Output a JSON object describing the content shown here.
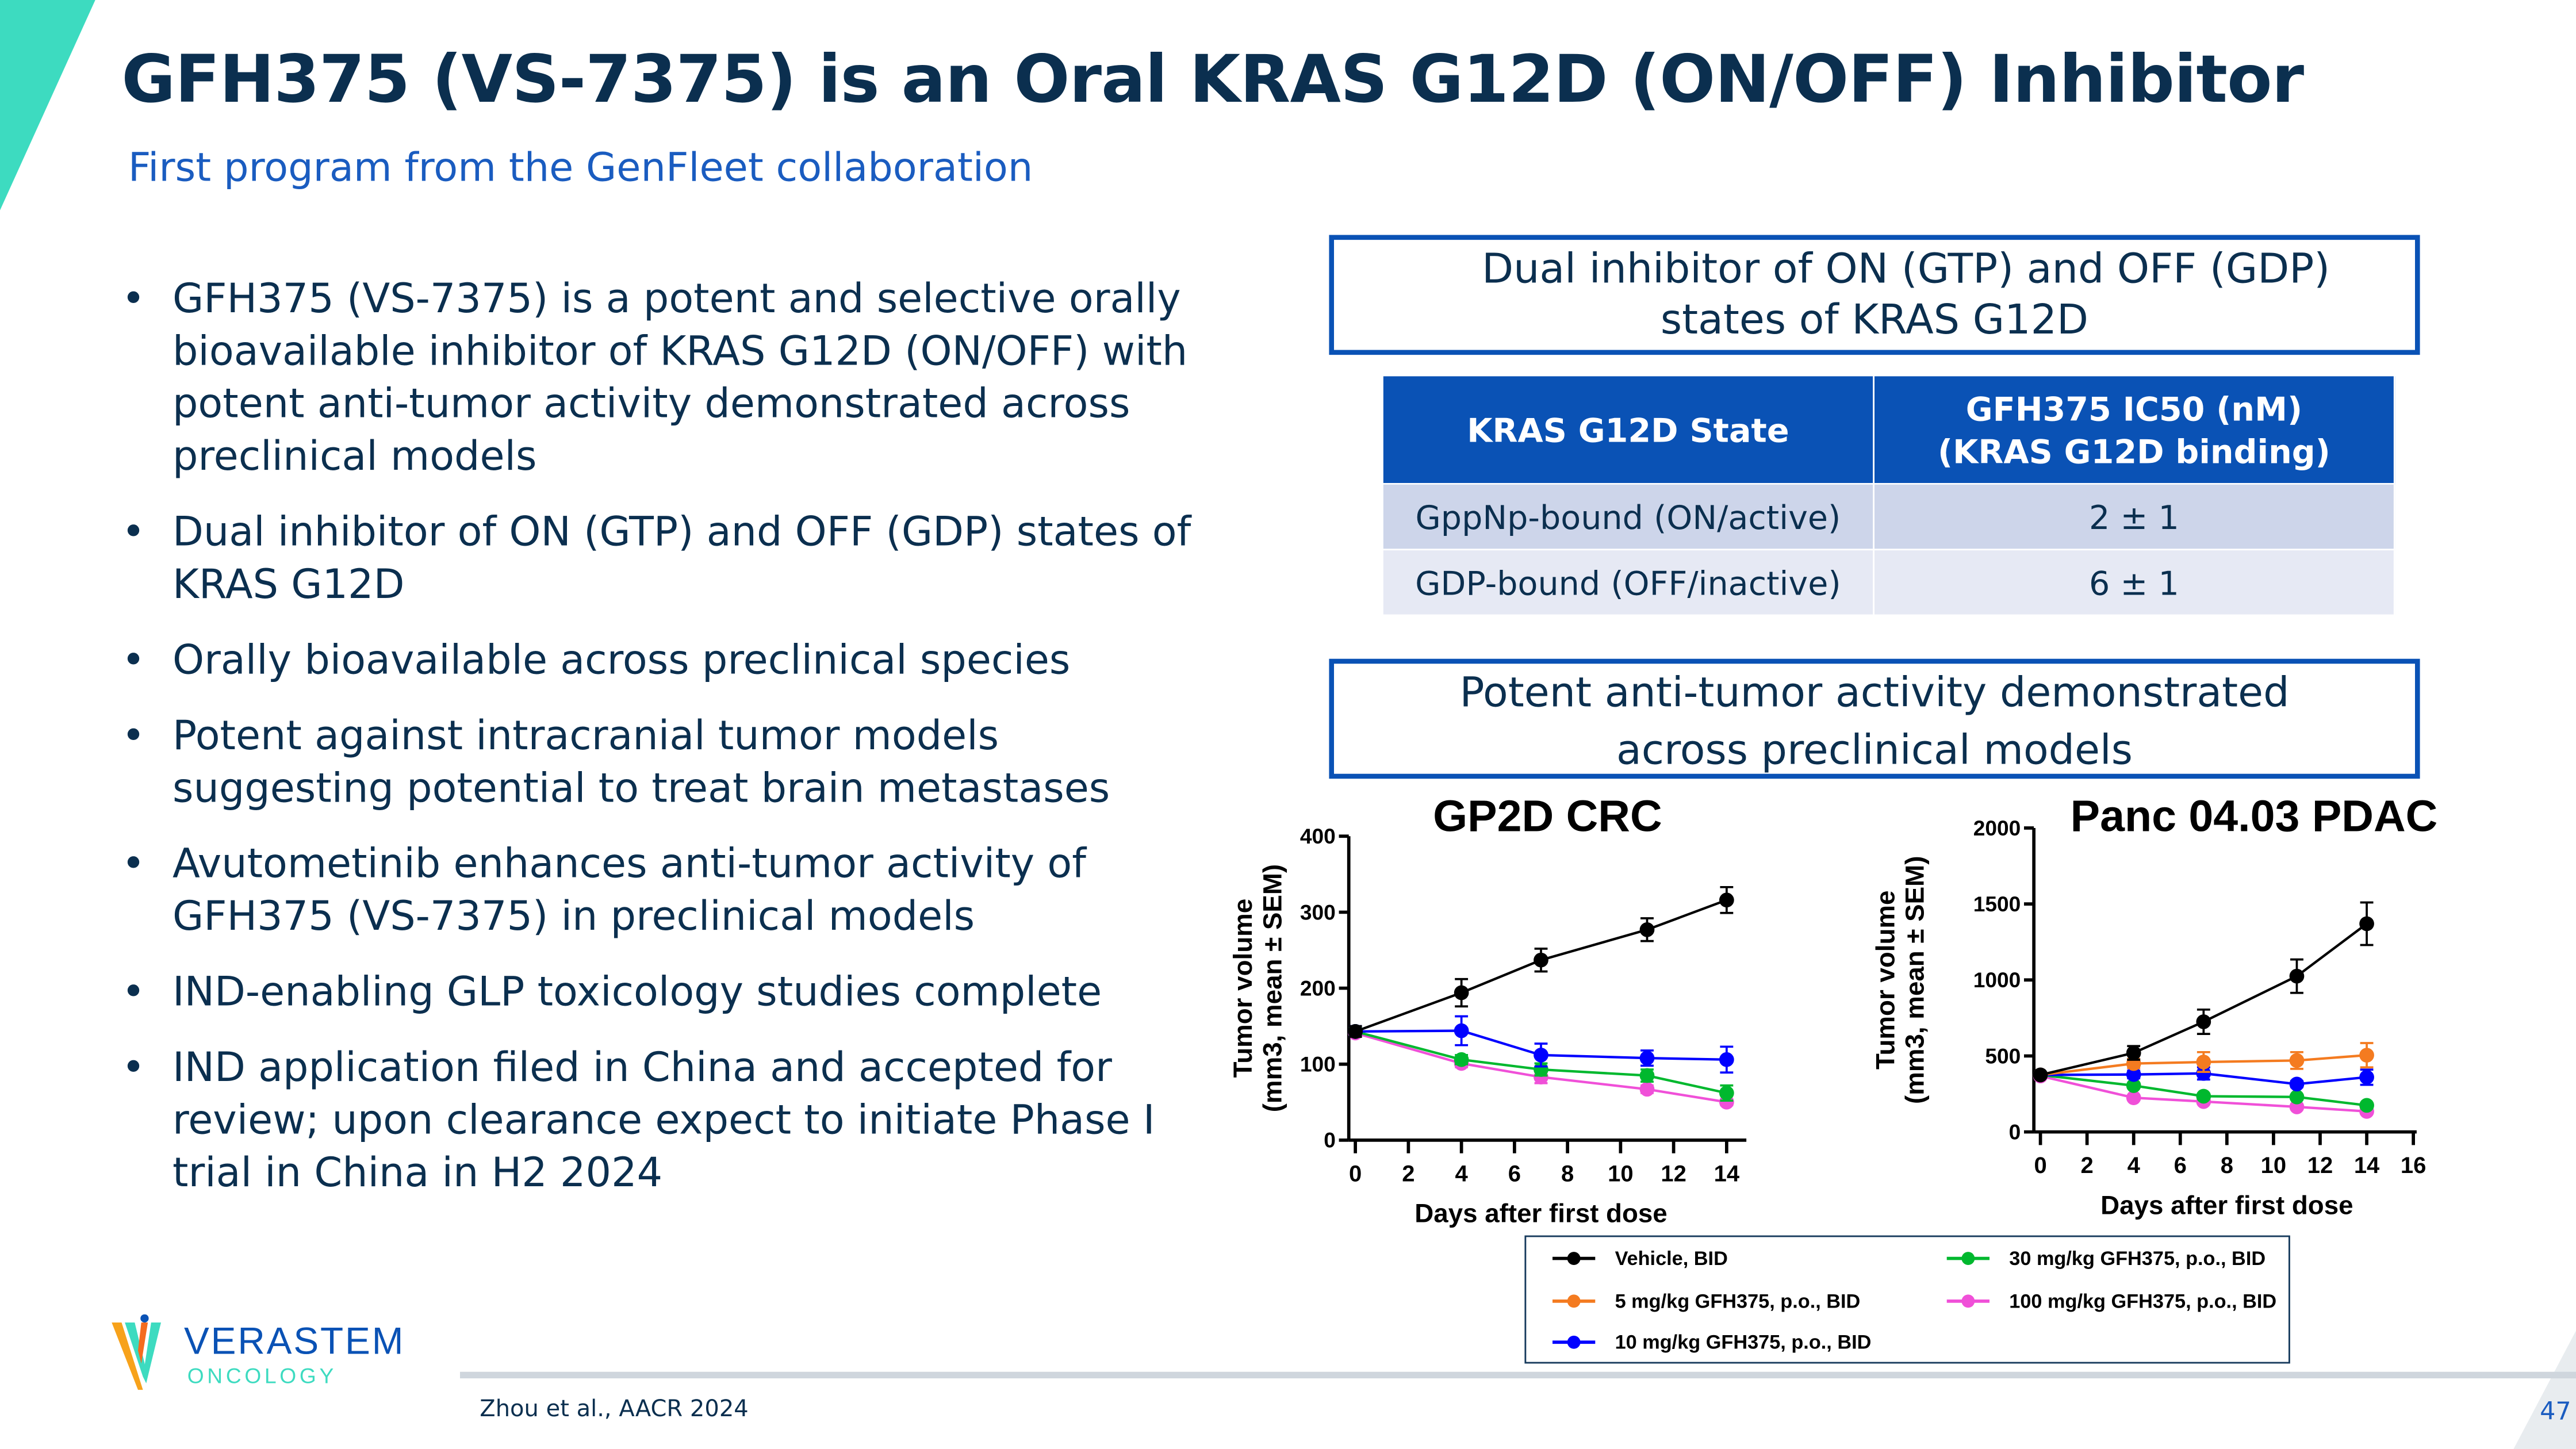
{
  "title": "GFH375 (VS-7375) is an Oral KRAS G12D (ON/OFF) Inhibitor",
  "subtitle": "First program from the GenFleet collaboration",
  "bullets": [
    "GFH375 (VS-7375) is a potent and selective orally bioavailable inhibitor of KRAS G12D (ON/OFF) with potent anti-tumor activity demonstrated across preclinical models",
    "Dual inhibitor of ON (GTP) and OFF (GDP) states of KRAS G12D",
    "Orally bioavailable across preclinical species",
    "Potent against intracranial tumor models suggesting potential to treat brain metastases",
    "Avutometinib enhances anti-tumor activity of GFH375 (VS-7375) in preclinical models",
    "IND-enabling GLP toxicology studies complete",
    "IND application filed in China and accepted for review; upon clearance expect to initiate Phase I trial in China in H2 2024"
  ],
  "callout_top": {
    "line1": "Dual inhibitor of ON (GTP) and OFF (GDP)",
    "line2": "states of KRAS G12D"
  },
  "table": {
    "headers": [
      "KRAS G12D State",
      "GFH375 IC50 (nM)",
      "(KRAS G12D binding)"
    ],
    "rows": [
      [
        "GppNp-bound (ON/active)",
        "2 ± 1"
      ],
      [
        "GDP-bound (OFF/inactive)",
        "6 ± 1"
      ]
    ]
  },
  "callout_bottom": {
    "line1": "Potent anti-tumor activity demonstrated",
    "line2": "across preclinical models"
  },
  "legend": [
    {
      "label": "Vehicle, BID",
      "color": "#000000"
    },
    {
      "label": "5 mg/kg GFH375, p.o., BID",
      "color": "#f47b20"
    },
    {
      "label": "10 mg/kg GFH375, p.o., BID",
      "color": "#0000ff"
    },
    {
      "label": "30 mg/kg GFH375, p.o., BID",
      "color": "#00b82e"
    },
    {
      "label": "100 mg/kg GFH375, p.o., BID",
      "color": "#f050d8"
    }
  ],
  "chart_data": [
    {
      "type": "line",
      "title": "GP2D CRC",
      "xlabel": "Days after first dose",
      "ylabel_line1": "Tumor volume",
      "ylabel_line2": "(mm3, mean ± SEM)",
      "xlim": [
        0,
        14
      ],
      "ylim": [
        0,
        400
      ],
      "xticks": [
        0,
        2,
        4,
        6,
        8,
        10,
        12,
        14
      ],
      "yticks": [
        0,
        100,
        200,
        300,
        400
      ],
      "x": [
        0,
        4,
        7,
        11,
        14
      ],
      "series": [
        {
          "name": "Vehicle, BID",
          "color": "#000000",
          "values": [
            143,
            194,
            237,
            277,
            316
          ],
          "sem": [
            7,
            18,
            15,
            15,
            17
          ]
        },
        {
          "name": "10 mg/kg GFH375, p.o., BID",
          "color": "#0000ff",
          "values": [
            143,
            144,
            112,
            108,
            106
          ],
          "sem": [
            7,
            19,
            15,
            10,
            17
          ]
        },
        {
          "name": "30 mg/kg GFH375, p.o., BID",
          "color": "#00b82e",
          "values": [
            143,
            106,
            93,
            85,
            62
          ],
          "sem": [
            5,
            6,
            8,
            8,
            10
          ]
        },
        {
          "name": "100 mg/kg GFH375, p.o., BID",
          "color": "#f050d8",
          "values": [
            141,
            101,
            83,
            67,
            50
          ],
          "sem": [
            5,
            5,
            8,
            5,
            4
          ]
        }
      ]
    },
    {
      "type": "line",
      "title": "Panc 04.03 PDAC",
      "xlabel": "Days after first dose",
      "ylabel_line1": "Tumor volume",
      "ylabel_line2": "(mm3, mean ± SEM)",
      "xlim": [
        0,
        16
      ],
      "ylim": [
        0,
        2000
      ],
      "xticks": [
        0,
        2,
        4,
        6,
        8,
        10,
        12,
        14,
        16
      ],
      "yticks": [
        0,
        500,
        1000,
        1500,
        2000
      ],
      "x": [
        0,
        4,
        7,
        11,
        14
      ],
      "series": [
        {
          "name": "Vehicle, BID",
          "color": "#000000",
          "values": [
            375,
            520,
            725,
            1025,
            1370
          ],
          "sem": [
            15,
            45,
            80,
            110,
            140
          ]
        },
        {
          "name": "5 mg/kg GFH375, p.o., BID",
          "color": "#f47b20",
          "values": [
            375,
            450,
            460,
            470,
            505
          ],
          "sem": [
            15,
            30,
            65,
            55,
            80
          ]
        },
        {
          "name": "10 mg/kg GFH375, p.o., BID",
          "color": "#0000ff",
          "values": [
            375,
            378,
            385,
            315,
            360
          ],
          "sem": [
            15,
            25,
            40,
            20,
            50
          ]
        },
        {
          "name": "30 mg/kg GFH375, p.o., BID",
          "color": "#00b82e",
          "values": [
            375,
            305,
            235,
            230,
            175
          ],
          "sem": [
            15,
            15,
            15,
            15,
            15
          ]
        },
        {
          "name": "100 mg/kg GFH375, p.o., BID",
          "color": "#f050d8",
          "values": [
            368,
            225,
            200,
            165,
            135
          ],
          "sem": [
            15,
            15,
            15,
            15,
            15
          ]
        }
      ]
    }
  ],
  "footer": {
    "citation": "Zhou et al., AACR 2024",
    "page_number": "47"
  },
  "logo": {
    "name": "VERASTEM",
    "tagline": "ONCOLOGY"
  },
  "colors": {
    "brand_blue": "#0a52b5",
    "title_navy": "#0b2f4f",
    "accent_teal": "#3ddbc0"
  }
}
